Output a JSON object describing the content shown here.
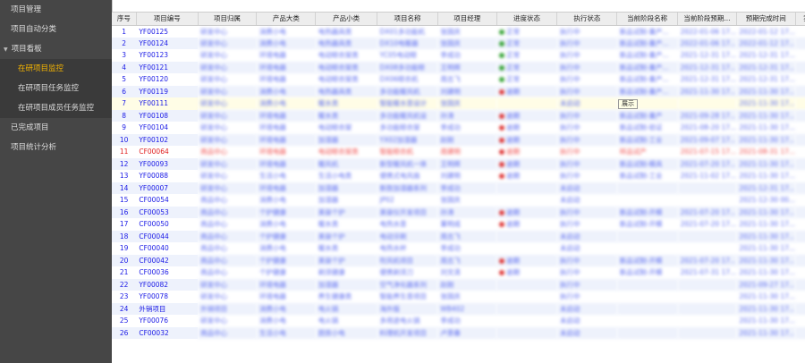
{
  "sidebar": {
    "items": [
      {
        "label": "项目管理"
      },
      {
        "label": "项目自动分类"
      },
      {
        "label": "项目看板",
        "expanded": true
      },
      {
        "label": "在研项目监控",
        "sub": true,
        "active": true
      },
      {
        "label": "在研项目任务监控",
        "sub": true
      },
      {
        "label": "在研项目成员任务监控",
        "sub": true
      },
      {
        "label": "已完成项目"
      },
      {
        "label": "项目统计分析"
      }
    ]
  },
  "table": {
    "columns": [
      "序号",
      "项目编号",
      "项目归属",
      "产品大类",
      "产品小类",
      "项目名称",
      "项目经理",
      "进度状态",
      "执行状态",
      "当前阶段名称",
      "当前阶段预期...",
      "预期完成时间",
      "实"
    ],
    "status_colors": {
      "正常": "#3aa53a",
      "逾期": "#e03c3c"
    },
    "rows": [
      [
        "1",
        "YF00125",
        "研发中心",
        "消费小电",
        "电热器具类",
        "DX01多功能机",
        "张国庆",
        "正常",
        "执行中",
        "新品试制-量产...",
        "2022-01-06 17...",
        "2022-01-12 17..."
      ],
      [
        "2",
        "YF00124",
        "研发中心",
        "消费小电",
        "电热器具类",
        "DX10电暖器",
        "张国庆",
        "正常",
        "执行中",
        "新品试制-量产...",
        "2022-01-06 17...",
        "2022-01-12 17..."
      ],
      [
        "3",
        "YF00123",
        "研发中心",
        "环境电器",
        "电动晾衣架类",
        "YC05电动晾",
        "李成功",
        "正常",
        "执行中",
        "新品试制-量产...",
        "2021-12-31 17...",
        "2021-12-31 17..."
      ],
      [
        "4",
        "YF00121",
        "研发中心",
        "环境电器",
        "电动晾衣架类",
        "DX08多功能晾",
        "王明辉",
        "正常",
        "执行中",
        "新品试制-量产...",
        "2021-12-31 17...",
        "2021-12-31 17..."
      ],
      [
        "5",
        "YF00120",
        "研发中心",
        "环境电器",
        "电动晾衣架类",
        "DX06晾衣机",
        "周志飞",
        "正常",
        "执行中",
        "新品试制-量产...",
        "2021-12-31 17...",
        "2021-12-31 17..."
      ],
      [
        "6",
        "YF00119",
        "研发中心",
        "消费小电",
        "电热器具类",
        "多功能暖风机",
        "刘建明",
        "逾期",
        "执行中",
        "新品试制-量产...",
        "2021-11-30 17...",
        "2021-11-30 17..."
      ],
      [
        "7",
        "YF00111",
        "研发中心",
        "消费小电",
        "暖水类",
        "智能暖水壶设计",
        "张国庆",
        "",
        "未启动",
        "",
        "",
        "2021-11-30 17..."
      ],
      [
        "8",
        "YF00108",
        "研发中心",
        "环境电器",
        "暖水类",
        "多功能暖风机设",
        "孙涛",
        "逾期",
        "执行中",
        "新品试制-量产",
        "2021-09-28 17...",
        "2021-11-30 17..."
      ],
      [
        "9",
        "YF00104",
        "研发中心",
        "环境电器",
        "电动晾衣架",
        "多功能晾衣架",
        "李成功",
        "逾期",
        "执行中",
        "新品试制-验证",
        "2021-08-20 17...",
        "2021-11-30 17..."
      ],
      [
        "10",
        "YF00102",
        "研发中心",
        "环境电器",
        "加湿器",
        "YX02加湿器",
        "赵刚",
        "逾期",
        "执行中",
        "新品试制-工业",
        "2021-09-07 17...",
        "2021-11-30 17..."
      ],
      [
        "11",
        "CF00064",
        "商品中心",
        "环境电器",
        "电动晾衣架类",
        "智能晾衣机",
        "周建明",
        "逾期",
        "执行中",
        "样品试产",
        "2021-07-15 17...",
        "2021-08-31 17..."
      ],
      [
        "12",
        "YF00093",
        "研发中心",
        "环境电器",
        "暖风机",
        "新型暖风机一体",
        "王明辉",
        "逾期",
        "执行中",
        "新品试制-模具",
        "2021-07-20 17...",
        "2021-11-30 17..."
      ],
      [
        "13",
        "YF00088",
        "研发中心",
        "生活小电",
        "生活小电类",
        "便携式电风扇",
        "刘建明",
        "逾期",
        "执行中",
        "新品试制-工业",
        "2021-11-02 17...",
        "2021-11-30 17..."
      ],
      [
        "14",
        "YF00007",
        "研发中心",
        "环境电器",
        "加湿器",
        "新款加湿器系列",
        "李成功",
        "",
        "未启动",
        "",
        "",
        "2021-12-31 17..."
      ],
      [
        "15",
        "CF00054",
        "商品中心",
        "消费小电",
        "加湿器",
        "JP02",
        "张国庆",
        "",
        "未启动",
        "",
        "",
        "2021-12-30 00..."
      ],
      [
        "16",
        "CF00053",
        "商品中心",
        "个护健康",
        "美容个护",
        "美容仪开发项目",
        "孙涛",
        "逾期",
        "执行中",
        "新品试制-开模",
        "2021-07-20 17...",
        "2021-11-30 17..."
      ],
      [
        "17",
        "CF00050",
        "商品中心",
        "消费小电",
        "暖水类",
        "电热水壶",
        "董明成",
        "逾期",
        "执行中",
        "新品试制-开模",
        "2021-07-20 17...",
        "2021-11-30 17..."
      ],
      [
        "18",
        "CF00044",
        "商品中心",
        "个护健康",
        "美容个护",
        "电动牙刷",
        "周志飞",
        "",
        "未启动",
        "",
        "",
        "2021-11-30 17..."
      ],
      [
        "19",
        "CF00040",
        "商品中心",
        "消费小电",
        "暖水类",
        "电热水杯",
        "李成功",
        "",
        "未启动",
        "",
        "",
        "2021-11-30 17..."
      ],
      [
        "20",
        "CF00042",
        "商品中心",
        "个护健康",
        "美容个护",
        "吹风机项目",
        "周志飞",
        "逾期",
        "执行中",
        "新品试制-开模",
        "2021-07-20 17...",
        "2021-11-30 17..."
      ],
      [
        "21",
        "CF00036",
        "商品中心",
        "个护健康",
        "剃须健康",
        "便携剃须刀",
        "刘文清",
        "逾期",
        "执行中",
        "新品试制-开模",
        "2021-07-31 17...",
        "2021-11-30 17..."
      ],
      [
        "22",
        "YF00082",
        "研发中心",
        "环境电器",
        "加湿器",
        "空气净化器系列",
        "赵刚",
        "",
        "执行中",
        "",
        "",
        "2021-09-27 17..."
      ],
      [
        "23",
        "YF00078",
        "研发中心",
        "环境电器",
        "养生健康类",
        "智能养生壶项目",
        "张国庆",
        "",
        "执行中",
        "",
        "",
        "2021-11-30 17..."
      ],
      [
        "24",
        "外销项目",
        "外销项目",
        "消费小电",
        "电火锅",
        "海外版",
        "WB402",
        "",
        "未启动",
        "",
        "",
        "2021-11-30 17..."
      ],
      [
        "25",
        "YF00076",
        "研发中心",
        "消费小电",
        "电火锅",
        "多用途电火锅",
        "李成功",
        "",
        "未启动",
        "",
        "",
        "2021-11-30 17..."
      ],
      [
        "26",
        "CF00032",
        "商品中心",
        "生活小电",
        "厨房小电",
        "料理机开发项目",
        "卢景春",
        "",
        "未启动",
        "",
        "",
        "2021-11-30 17..."
      ]
    ]
  },
  "tooltip": "展示"
}
